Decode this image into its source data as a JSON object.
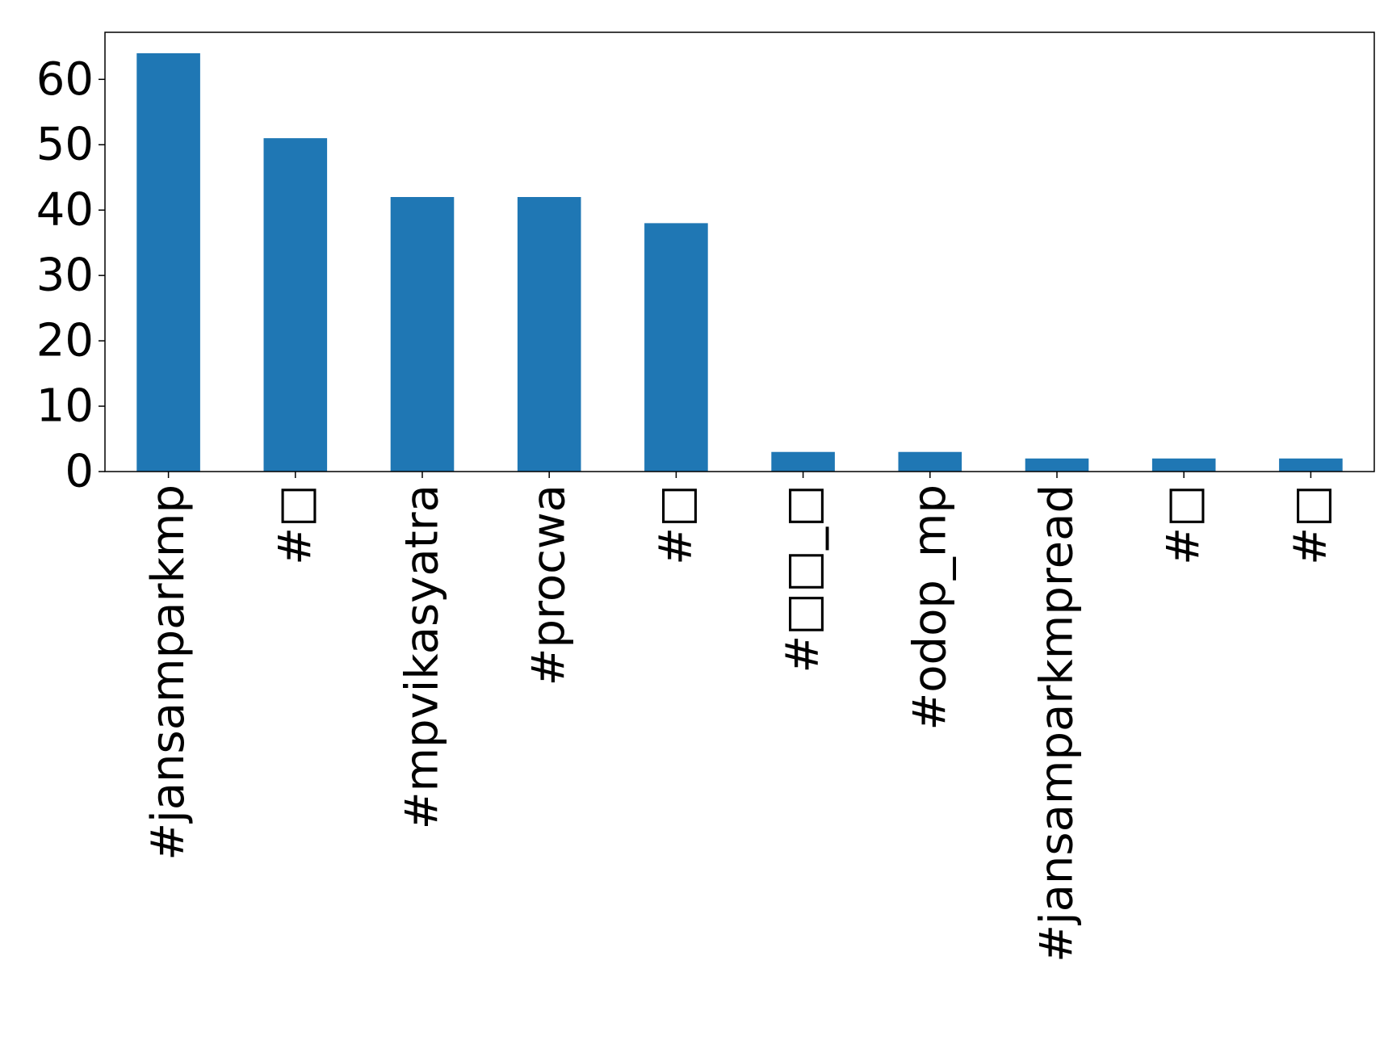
{
  "chart_data": {
    "type": "bar",
    "title": "",
    "xlabel": "",
    "ylabel": "",
    "categories": [
      "#jansamparkmp",
      "#□",
      "#mpvikasyatra",
      "#procwa",
      "#□",
      "#□□_□",
      "#odop_mp",
      "#jansamparkmpread",
      "#□",
      "#□"
    ],
    "values": [
      64,
      51,
      42,
      42,
      38,
      3,
      3,
      2,
      2,
      2
    ],
    "ylim": [
      0,
      67.2
    ],
    "yticks": [
      0,
      10,
      20,
      30,
      40,
      50,
      60
    ],
    "grid": false,
    "legend": "none",
    "x_label_rotation": -90,
    "bar_color": "#1f77b4",
    "axis_color": "#000000"
  }
}
